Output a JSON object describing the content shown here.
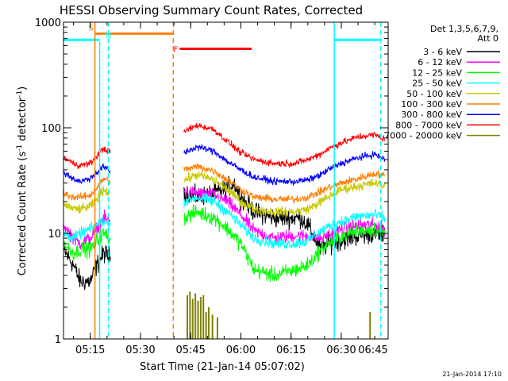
{
  "chart_data": {
    "type": "line",
    "title": "HESSI Observing Summary Count Rates, Corrected",
    "xlabel": "Start Time (21-Jan-14 05:07:02)",
    "ylabel_main": "Corrected Count Rate (s",
    "ylabel_sup1": "-1",
    "ylabel_mid": " detector",
    "ylabel_sup2": "-1",
    "ylabel_end": ")",
    "yscale": "log",
    "ylim": [
      1,
      1000
    ],
    "xlim_min": [
      7,
      104
    ],
    "x_ticks": [
      {
        "m": 15,
        "label": "05:15"
      },
      {
        "m": 30,
        "label": "05:30"
      },
      {
        "m": 45,
        "label": "05:45"
      },
      {
        "m": 60,
        "label": "06:00"
      },
      {
        "m": 75,
        "label": "06:15"
      },
      {
        "m": 90,
        "label": "06:30"
      },
      {
        "m": 105,
        "label": "06:45"
      }
    ],
    "y_ticks": [
      {
        "v": 1,
        "label": "1"
      },
      {
        "v": 10,
        "label": "10"
      },
      {
        "v": 100,
        "label": "100"
      },
      {
        "v": 1000,
        "label": "1000"
      }
    ],
    "legend_header": [
      "Det 1,3,5,6,7,9,",
      "Att 0"
    ],
    "legend_position": "right",
    "footer_date": "21-Jan-2014 17:10",
    "series": [
      {
        "name": "3 - 6 keV",
        "color": "#000000",
        "noise": 0.1,
        "segments": [
          [
            [
              7,
              7
            ],
            [
              10,
              5
            ],
            [
              12,
              3.5
            ],
            [
              15,
              3.5
            ],
            [
              17,
              5
            ],
            [
              19,
              6.5
            ],
            [
              21,
              6
            ]
          ],
          [
            [
              43,
              25
            ],
            [
              47,
              22
            ],
            [
              52,
              24
            ],
            [
              55,
              26
            ],
            [
              58,
              30
            ],
            [
              60,
              22
            ],
            [
              64,
              16
            ],
            [
              70,
              14
            ],
            [
              75,
              14
            ],
            [
              78,
              14
            ],
            [
              80,
              12
            ],
            [
              84,
              7
            ],
            [
              86,
              8
            ],
            [
              90,
              8.5
            ],
            [
              95,
              9.5
            ],
            [
              100,
              10
            ],
            [
              103,
              9.5
            ]
          ]
        ]
      },
      {
        "name": "6 - 12 keV",
        "color": "#ff00ff",
        "noise": 0.07,
        "segments": [
          [
            [
              7,
              12
            ],
            [
              10,
              9
            ],
            [
              12,
              8
            ],
            [
              15,
              9
            ],
            [
              17,
              11
            ],
            [
              19,
              14
            ],
            [
              21,
              13
            ]
          ],
          [
            [
              43,
              25
            ],
            [
              47,
              24
            ],
            [
              52,
              23
            ],
            [
              56,
              20
            ],
            [
              60,
              15
            ],
            [
              64,
              10.5
            ],
            [
              70,
              9
            ],
            [
              76,
              9.5
            ],
            [
              80,
              9.5
            ],
            [
              84,
              9
            ],
            [
              86,
              9.5
            ],
            [
              90,
              11
            ],
            [
              95,
              12
            ],
            [
              100,
              12
            ],
            [
              103,
              11
            ]
          ]
        ]
      },
      {
        "name": "12 - 25 keV",
        "color": "#00ff00",
        "noise": 0.08,
        "segments": [
          [
            [
              7,
              8
            ],
            [
              10,
              6.5
            ],
            [
              12,
              7
            ],
            [
              15,
              7
            ],
            [
              17,
              8.5
            ],
            [
              19,
              10
            ],
            [
              21,
              9
            ]
          ],
          [
            [
              43,
              14
            ],
            [
              47,
              16
            ],
            [
              52,
              14
            ],
            [
              56,
              11
            ],
            [
              60,
              8
            ],
            [
              64,
              4.5
            ],
            [
              70,
              4
            ],
            [
              76,
              4.5
            ],
            [
              80,
              5
            ],
            [
              84,
              7
            ],
            [
              86,
              8
            ],
            [
              90,
              9.5
            ],
            [
              95,
              10.5
            ],
            [
              100,
              11
            ],
            [
              103,
              10
            ]
          ]
        ]
      },
      {
        "name": "25 - 50 keV",
        "color": "#00ffff",
        "noise": 0.06,
        "segments": [
          [
            [
              7,
              10
            ],
            [
              10,
              9
            ],
            [
              12,
              10
            ],
            [
              15,
              11
            ],
            [
              17,
              12
            ],
            [
              19,
              13
            ],
            [
              21,
              12
            ]
          ],
          [
            [
              43,
              20
            ],
            [
              47,
              22
            ],
            [
              52,
              20
            ],
            [
              56,
              16
            ],
            [
              60,
              12
            ],
            [
              64,
              9
            ],
            [
              70,
              8
            ],
            [
              76,
              8
            ],
            [
              80,
              8.5
            ],
            [
              84,
              10.5
            ],
            [
              86,
              11.5
            ],
            [
              90,
              13
            ],
            [
              95,
              14.5
            ],
            [
              100,
              15
            ],
            [
              103,
              14
            ]
          ]
        ]
      },
      {
        "name": "50 - 100 keV",
        "color": "#c8c800",
        "noise": 0.05,
        "segments": [
          [
            [
              7,
              19
            ],
            [
              10,
              17
            ],
            [
              12,
              17
            ],
            [
              15,
              18
            ],
            [
              17,
              21
            ],
            [
              19,
              26
            ],
            [
              21,
              24
            ]
          ],
          [
            [
              43,
              32
            ],
            [
              47,
              36
            ],
            [
              52,
              32
            ],
            [
              56,
              26
            ],
            [
              60,
              20
            ],
            [
              64,
              17
            ],
            [
              70,
              16
            ],
            [
              76,
              16
            ],
            [
              80,
              17
            ],
            [
              84,
              20
            ],
            [
              86,
              22
            ],
            [
              90,
              26
            ],
            [
              95,
              28
            ],
            [
              100,
              30
            ],
            [
              103,
              28
            ]
          ]
        ]
      },
      {
        "name": "100 - 300 keV",
        "color": "#ff7f00",
        "noise": 0.04,
        "segments": [
          [
            [
              7,
              24
            ],
            [
              10,
              22
            ],
            [
              12,
              22
            ],
            [
              15,
              23
            ],
            [
              17,
              27
            ],
            [
              19,
              33
            ],
            [
              21,
              31
            ]
          ],
          [
            [
              43,
              40
            ],
            [
              47,
              43
            ],
            [
              52,
              39
            ],
            [
              56,
              32
            ],
            [
              60,
              26
            ],
            [
              64,
              22
            ],
            [
              70,
              21
            ],
            [
              76,
              21
            ],
            [
              80,
              22
            ],
            [
              84,
              25
            ],
            [
              86,
              27
            ],
            [
              90,
              30
            ],
            [
              95,
              33
            ],
            [
              100,
              37
            ],
            [
              103,
              35
            ]
          ]
        ]
      },
      {
        "name": "300 - 800 keV",
        "color": "#0000ff",
        "noise": 0.035,
        "segments": [
          [
            [
              7,
              38
            ],
            [
              10,
              33
            ],
            [
              12,
              31
            ],
            [
              15,
              33
            ],
            [
              17,
              38
            ],
            [
              19,
              43
            ],
            [
              21,
              38
            ]
          ],
          [
            [
              43,
              58
            ],
            [
              47,
              66
            ],
            [
              52,
              60
            ],
            [
              56,
              48
            ],
            [
              60,
              40
            ],
            [
              64,
              34
            ],
            [
              70,
              31
            ],
            [
              76,
              31
            ],
            [
              80,
              32
            ],
            [
              84,
              36
            ],
            [
              86,
              40
            ],
            [
              90,
              46
            ],
            [
              95,
              52
            ],
            [
              100,
              56
            ],
            [
              103,
              50
            ]
          ]
        ]
      },
      {
        "name": "800 - 7000 keV",
        "color": "#ff0000",
        "noise": 0.035,
        "segments": [
          [
            [
              7,
              52
            ],
            [
              10,
              46
            ],
            [
              12,
              44
            ],
            [
              15,
              46
            ],
            [
              17,
              54
            ],
            [
              19,
              64
            ],
            [
              21,
              58
            ]
          ],
          [
            [
              43,
              92
            ],
            [
              47,
              106
            ],
            [
              52,
              96
            ],
            [
              56,
              74
            ],
            [
              60,
              58
            ],
            [
              64,
              50
            ],
            [
              70,
              46
            ],
            [
              76,
              46
            ],
            [
              80,
              50
            ],
            [
              84,
              57
            ],
            [
              86,
              63
            ],
            [
              90,
              72
            ],
            [
              95,
              82
            ],
            [
              100,
              86
            ],
            [
              103,
              78
            ]
          ]
        ]
      },
      {
        "name": "7000 - 20000 keV",
        "color": "#808000",
        "noise": 0,
        "spikes": [
          [
            44,
            2.6
          ],
          [
            44.8,
            2.8
          ],
          [
            45.6,
            2.4
          ],
          [
            46.4,
            2.7
          ],
          [
            47.2,
            2.3
          ],
          [
            48,
            2.5
          ],
          [
            48.8,
            2.6
          ],
          [
            49.6,
            1.8
          ],
          [
            50.4,
            2.0
          ],
          [
            51.5,
            1.7
          ],
          [
            53,
            1.6
          ],
          [
            98.6,
            1.8
          ]
        ]
      }
    ],
    "annotations": [
      {
        "type": "bar",
        "label": "",
        "color": "#00ffff",
        "x0": 7,
        "x1": 17.8,
        "v": 680
      },
      {
        "type": "bar",
        "label": "",
        "color": "#00ffff",
        "x0": 87.9,
        "x1": 101.8,
        "v": 680
      },
      {
        "type": "bar",
        "label": "S",
        "color": "#ff7f00",
        "x0": 16.4,
        "x1": 39.8,
        "v": 780
      },
      {
        "type": "bar",
        "label": "F",
        "color": "#ff0000",
        "x0": 41.7,
        "x1": 63.2,
        "v": 560
      },
      {
        "type": "label",
        "label": "N",
        "color": "#00ffff",
        "x": 19.5,
        "v": 705
      },
      {
        "type": "vline",
        "color": "#ff7f00",
        "dash": false,
        "x": 16.4
      },
      {
        "type": "vline",
        "color": "#ff7f00",
        "dash": true,
        "x": 39.8
      },
      {
        "type": "vline",
        "color": "#00ffff",
        "dash": false,
        "x": 17.8,
        "clip": 655
      },
      {
        "type": "vline",
        "color": "#00ffff",
        "dash": true,
        "x": 20.4
      },
      {
        "type": "vline",
        "color": "#00ffff",
        "dash": false,
        "x": 87.9
      },
      {
        "type": "vline",
        "color": "#00ffff",
        "dash": true,
        "x": 101.8
      }
    ]
  }
}
